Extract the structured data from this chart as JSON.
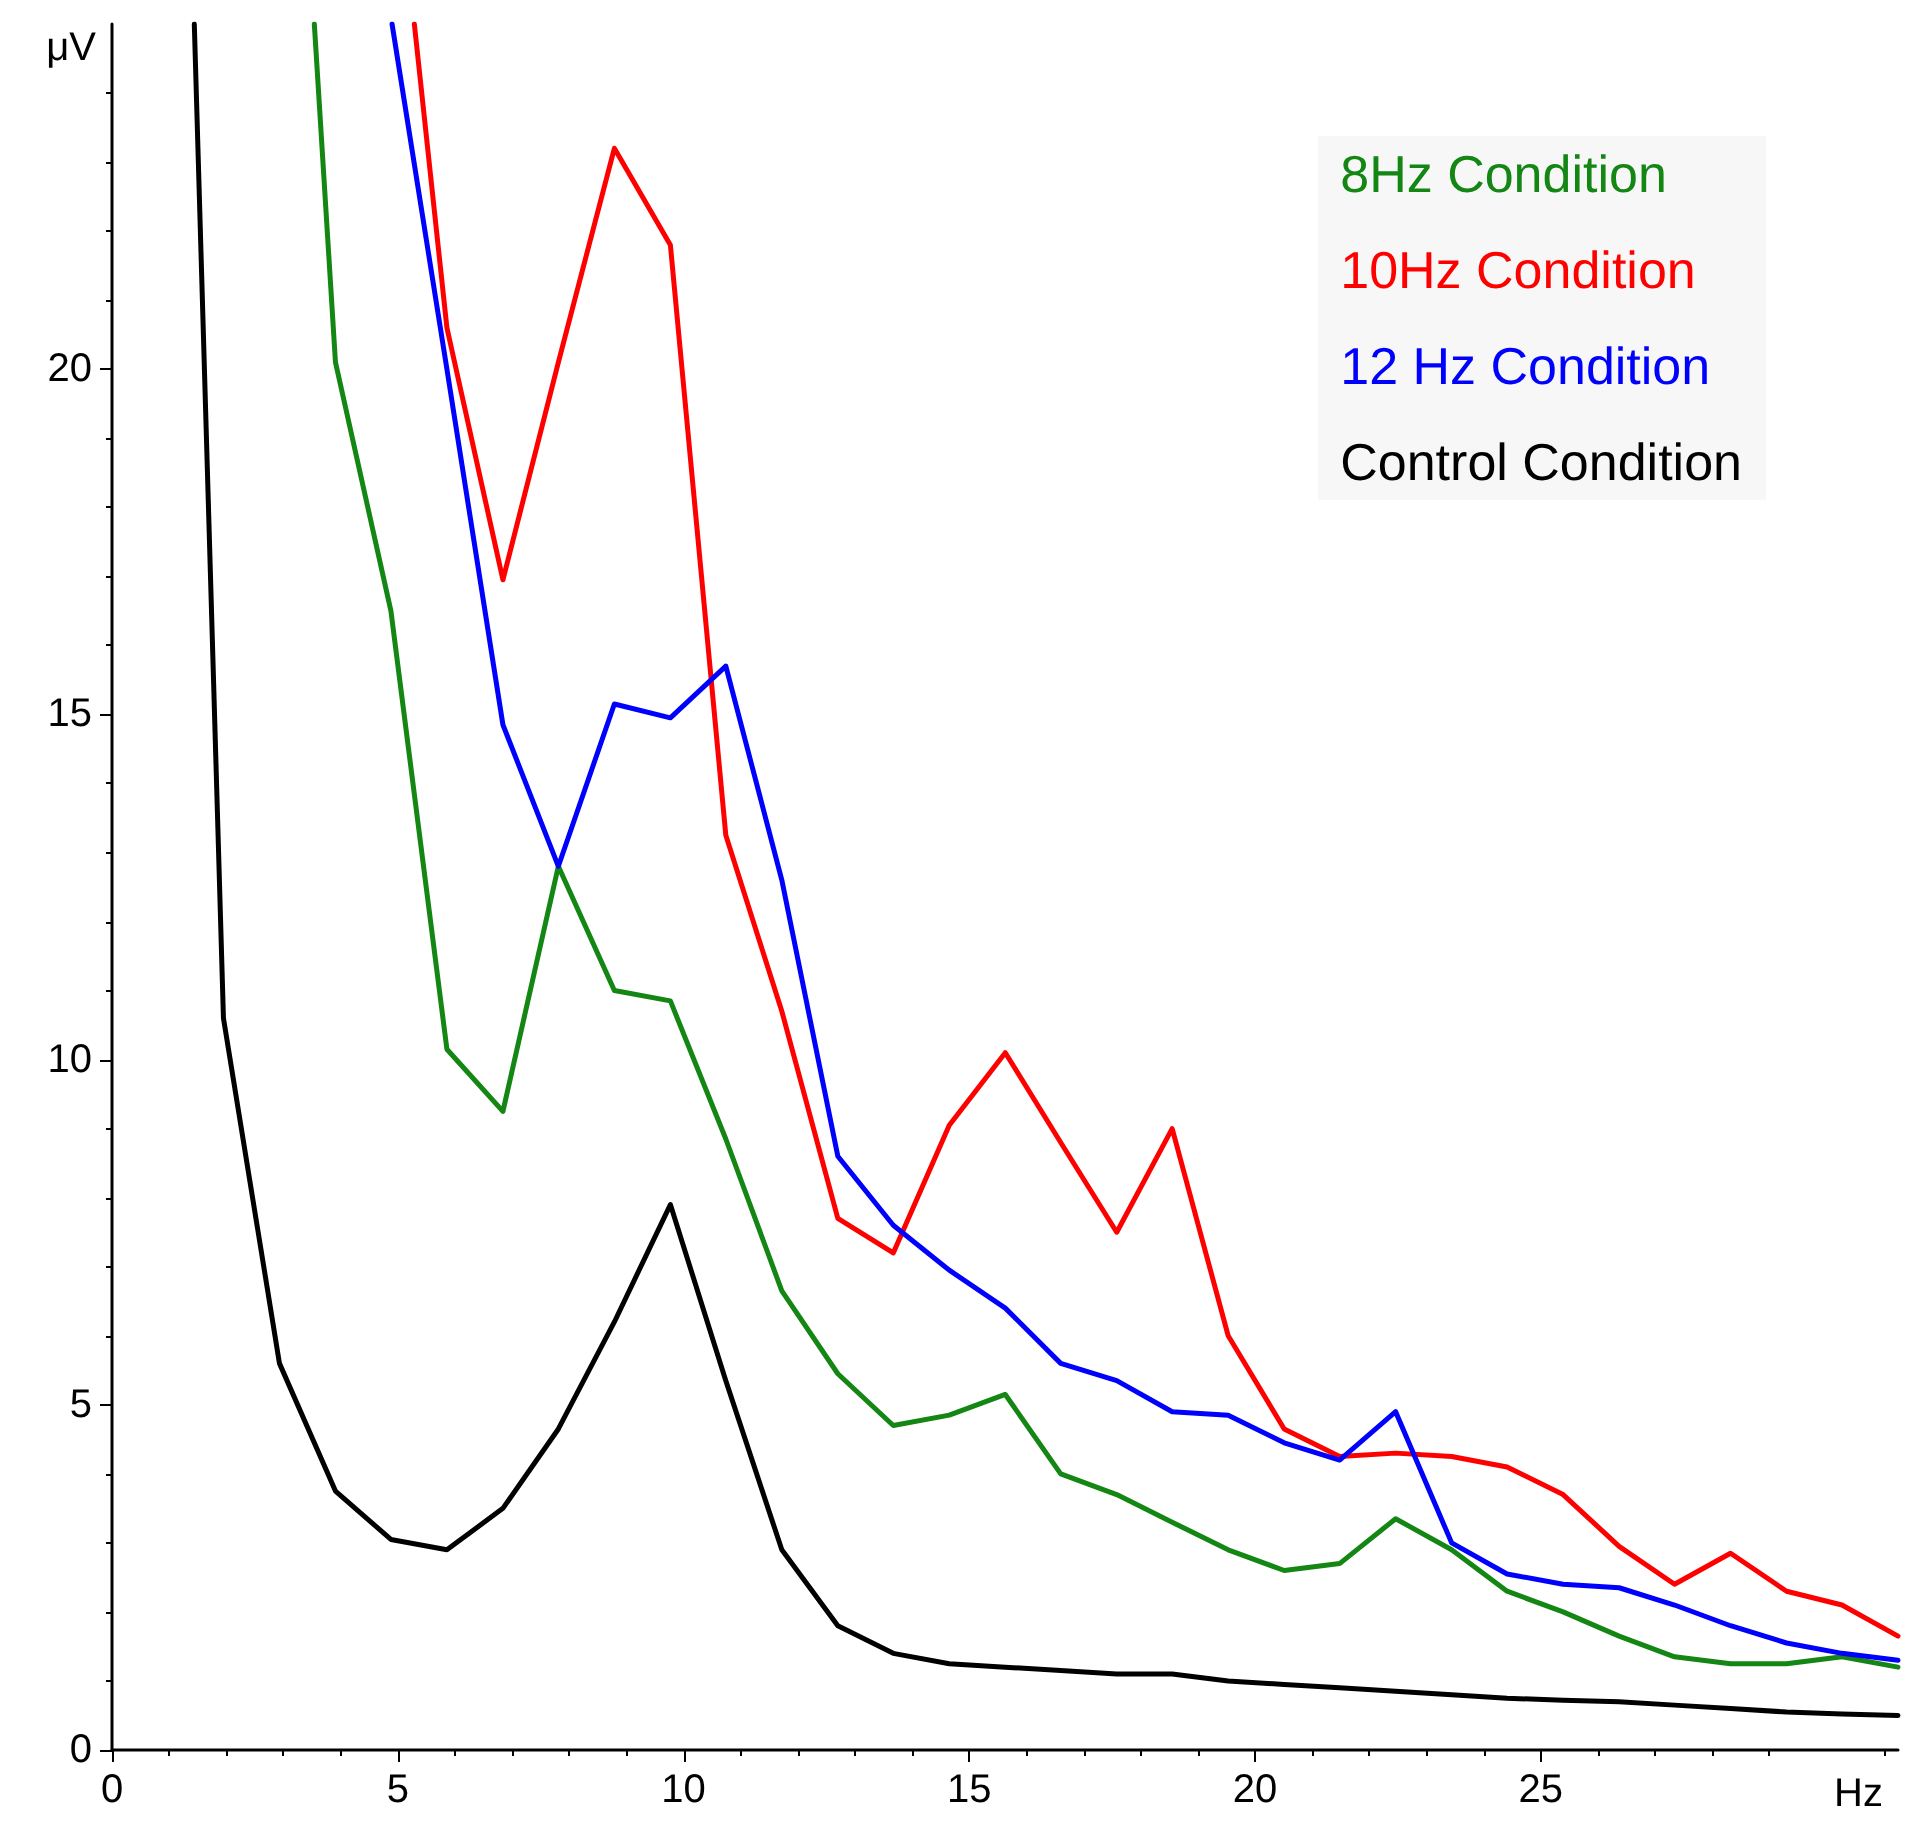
{
  "chart_data": {
    "type": "line",
    "xlabel": "Hz",
    "ylabel": "μV",
    "xlim": [
      0,
      31.25
    ],
    "xticks": [
      0,
      5,
      10,
      15,
      20,
      25
    ],
    "ylim": [
      0,
      25
    ],
    "yticks": [
      0,
      5,
      10,
      15,
      20
    ],
    "grid": false,
    "legend": "top right",
    "marker": "none",
    "line_style": "solid",
    "series": [
      {
        "name": "8Hz Condition",
        "color": "#138613",
        "x": [
          3.54,
          3.91,
          4.88,
          5.86,
          6.84,
          7.81,
          8.79,
          9.77,
          10.74,
          11.72,
          12.7,
          13.67,
          14.65,
          15.63,
          16.6,
          17.58,
          18.55,
          19.53,
          20.51,
          21.48,
          22.46,
          23.44,
          24.41,
          25.39,
          26.37,
          27.34,
          28.32,
          29.3,
          30.27,
          31.25
        ],
        "values": [
          25,
          20.1,
          16.5,
          10.15,
          9.25,
          12.8,
          11.0,
          10.85,
          8.85,
          6.65,
          5.45,
          4.7,
          4.85,
          5.15,
          4.0,
          3.7,
          3.3,
          2.9,
          2.6,
          2.7,
          3.35,
          2.9,
          2.3,
          2.0,
          1.65,
          1.35,
          1.25,
          1.25,
          1.35,
          1.2
        ]
      },
      {
        "name": "10Hz Condition",
        "color": "#ff0000",
        "x": [
          5.29,
          5.86,
          6.84,
          7.81,
          8.79,
          9.77,
          10.74,
          11.72,
          12.7,
          13.67,
          14.65,
          15.63,
          16.6,
          17.58,
          18.55,
          19.53,
          20.51,
          21.48,
          22.46,
          23.44,
          24.41,
          25.39,
          26.37,
          27.34,
          28.32,
          29.3,
          30.27,
          31.25
        ],
        "values": [
          25,
          20.6,
          16.95,
          20.1,
          23.2,
          21.8,
          13.25,
          10.7,
          7.7,
          7.2,
          9.05,
          10.1,
          8.8,
          7.5,
          9.0,
          6.0,
          4.65,
          4.25,
          4.3,
          4.25,
          4.1,
          3.7,
          2.95,
          2.4,
          2.85,
          2.3,
          2.1,
          1.65
        ]
      },
      {
        "name": "12 Hz Condition",
        "color": "#0000ff",
        "x": [
          4.9,
          5.86,
          6.84,
          7.81,
          8.79,
          9.77,
          10.74,
          11.72,
          12.7,
          13.67,
          14.65,
          15.63,
          16.6,
          17.58,
          18.55,
          19.53,
          20.51,
          21.48,
          22.46,
          23.44,
          24.41,
          25.39,
          26.37,
          27.34,
          28.32,
          29.3,
          30.27,
          31.25
        ],
        "values": [
          25,
          20.0,
          14.85,
          12.8,
          15.15,
          14.95,
          15.7,
          12.6,
          8.6,
          7.6,
          6.95,
          6.4,
          5.6,
          5.35,
          4.9,
          4.85,
          4.45,
          4.2,
          4.9,
          3.0,
          2.55,
          2.4,
          2.35,
          2.1,
          1.8,
          1.55,
          1.4,
          1.3
        ]
      },
      {
        "name": "Control Condition",
        "color": "#000000",
        "x": [
          1.44,
          1.95,
          2.93,
          3.91,
          4.88,
          5.86,
          6.84,
          7.81,
          8.79,
          9.77,
          10.74,
          11.72,
          12.7,
          13.67,
          14.65,
          15.63,
          16.6,
          17.58,
          18.55,
          19.53,
          20.51,
          21.48,
          22.46,
          23.44,
          24.41,
          25.39,
          26.37,
          27.34,
          28.32,
          29.3,
          30.27,
          31.25
        ],
        "values": [
          25,
          10.6,
          5.6,
          3.75,
          3.05,
          2.9,
          3.5,
          4.65,
          6.2,
          7.9,
          5.35,
          2.9,
          1.8,
          1.4,
          1.25,
          1.2,
          1.15,
          1.1,
          1.1,
          1.0,
          0.95,
          0.9,
          0.85,
          0.8,
          0.75,
          0.72,
          0.7,
          0.65,
          0.6,
          0.55,
          0.52,
          0.5
        ]
      }
    ]
  }
}
